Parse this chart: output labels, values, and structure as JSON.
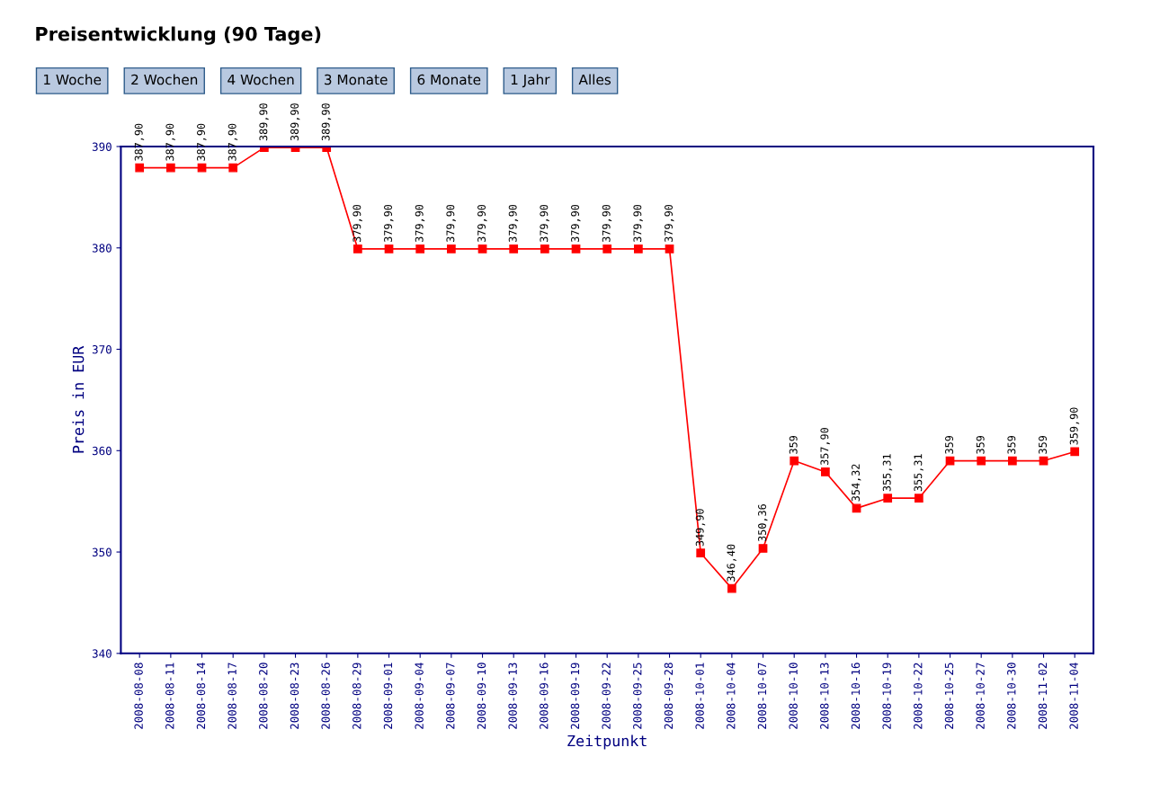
{
  "chart_data": {
    "type": "line",
    "title": "Preisentwicklung (90 Tage)",
    "annotations": [
      "1 Woche",
      "2 Wochen",
      "4 Wochen",
      "3 Monate",
      "6 Monate",
      "1 Jahr",
      "Alles"
    ],
    "xlabel": "Zeitpunkt",
    "ylabel": "Preis in EUR",
    "categories": [
      "2008-08-08",
      "2008-08-11",
      "2008-08-14",
      "2008-08-17",
      "2008-08-20",
      "2008-08-23",
      "2008-08-26",
      "2008-08-29",
      "2008-09-01",
      "2008-09-04",
      "2008-09-07",
      "2008-09-10",
      "2008-09-13",
      "2008-09-16",
      "2008-09-19",
      "2008-09-22",
      "2008-09-25",
      "2008-09-28",
      "2008-10-01",
      "2008-10-04",
      "2008-10-07",
      "2008-10-10",
      "2008-10-13",
      "2008-10-16",
      "2008-10-19",
      "2008-10-22",
      "2008-10-25",
      "2008-10-27",
      "2008-10-30",
      "2008-11-02",
      "2008-11-04"
    ],
    "series": [
      {
        "color": "#ff0000",
        "values": [
          387.9,
          387.9,
          387.9,
          387.9,
          389.9,
          389.9,
          389.9,
          379.9,
          379.9,
          379.9,
          379.9,
          379.9,
          379.9,
          379.9,
          379.9,
          379.9,
          379.9,
          379.9,
          349.9,
          346.4,
          350.36,
          359,
          357.9,
          354.32,
          355.31,
          355.31,
          359,
          359,
          359,
          359,
          359.9
        ],
        "value_labels": [
          "387,90",
          "387,90",
          "387,90",
          "387,90",
          "389,90",
          "389,90",
          "389,90",
          "379,90",
          "379,90",
          "379,90",
          "379,90",
          "379,90",
          "379,90",
          "379,90",
          "379,90",
          "379,90",
          "379,90",
          "379,90",
          "349,90",
          "346,40",
          "350,36",
          "359",
          "357,90",
          "354,32",
          "355,31",
          "355,31",
          "359",
          "359",
          "359",
          "359",
          "359,90"
        ]
      }
    ],
    "ylim": [
      340,
      390
    ],
    "yticks": [
      340,
      350,
      360,
      370,
      380,
      390
    ],
    "grid": false,
    "legend": false,
    "marker": "square",
    "line_style": "solid"
  }
}
